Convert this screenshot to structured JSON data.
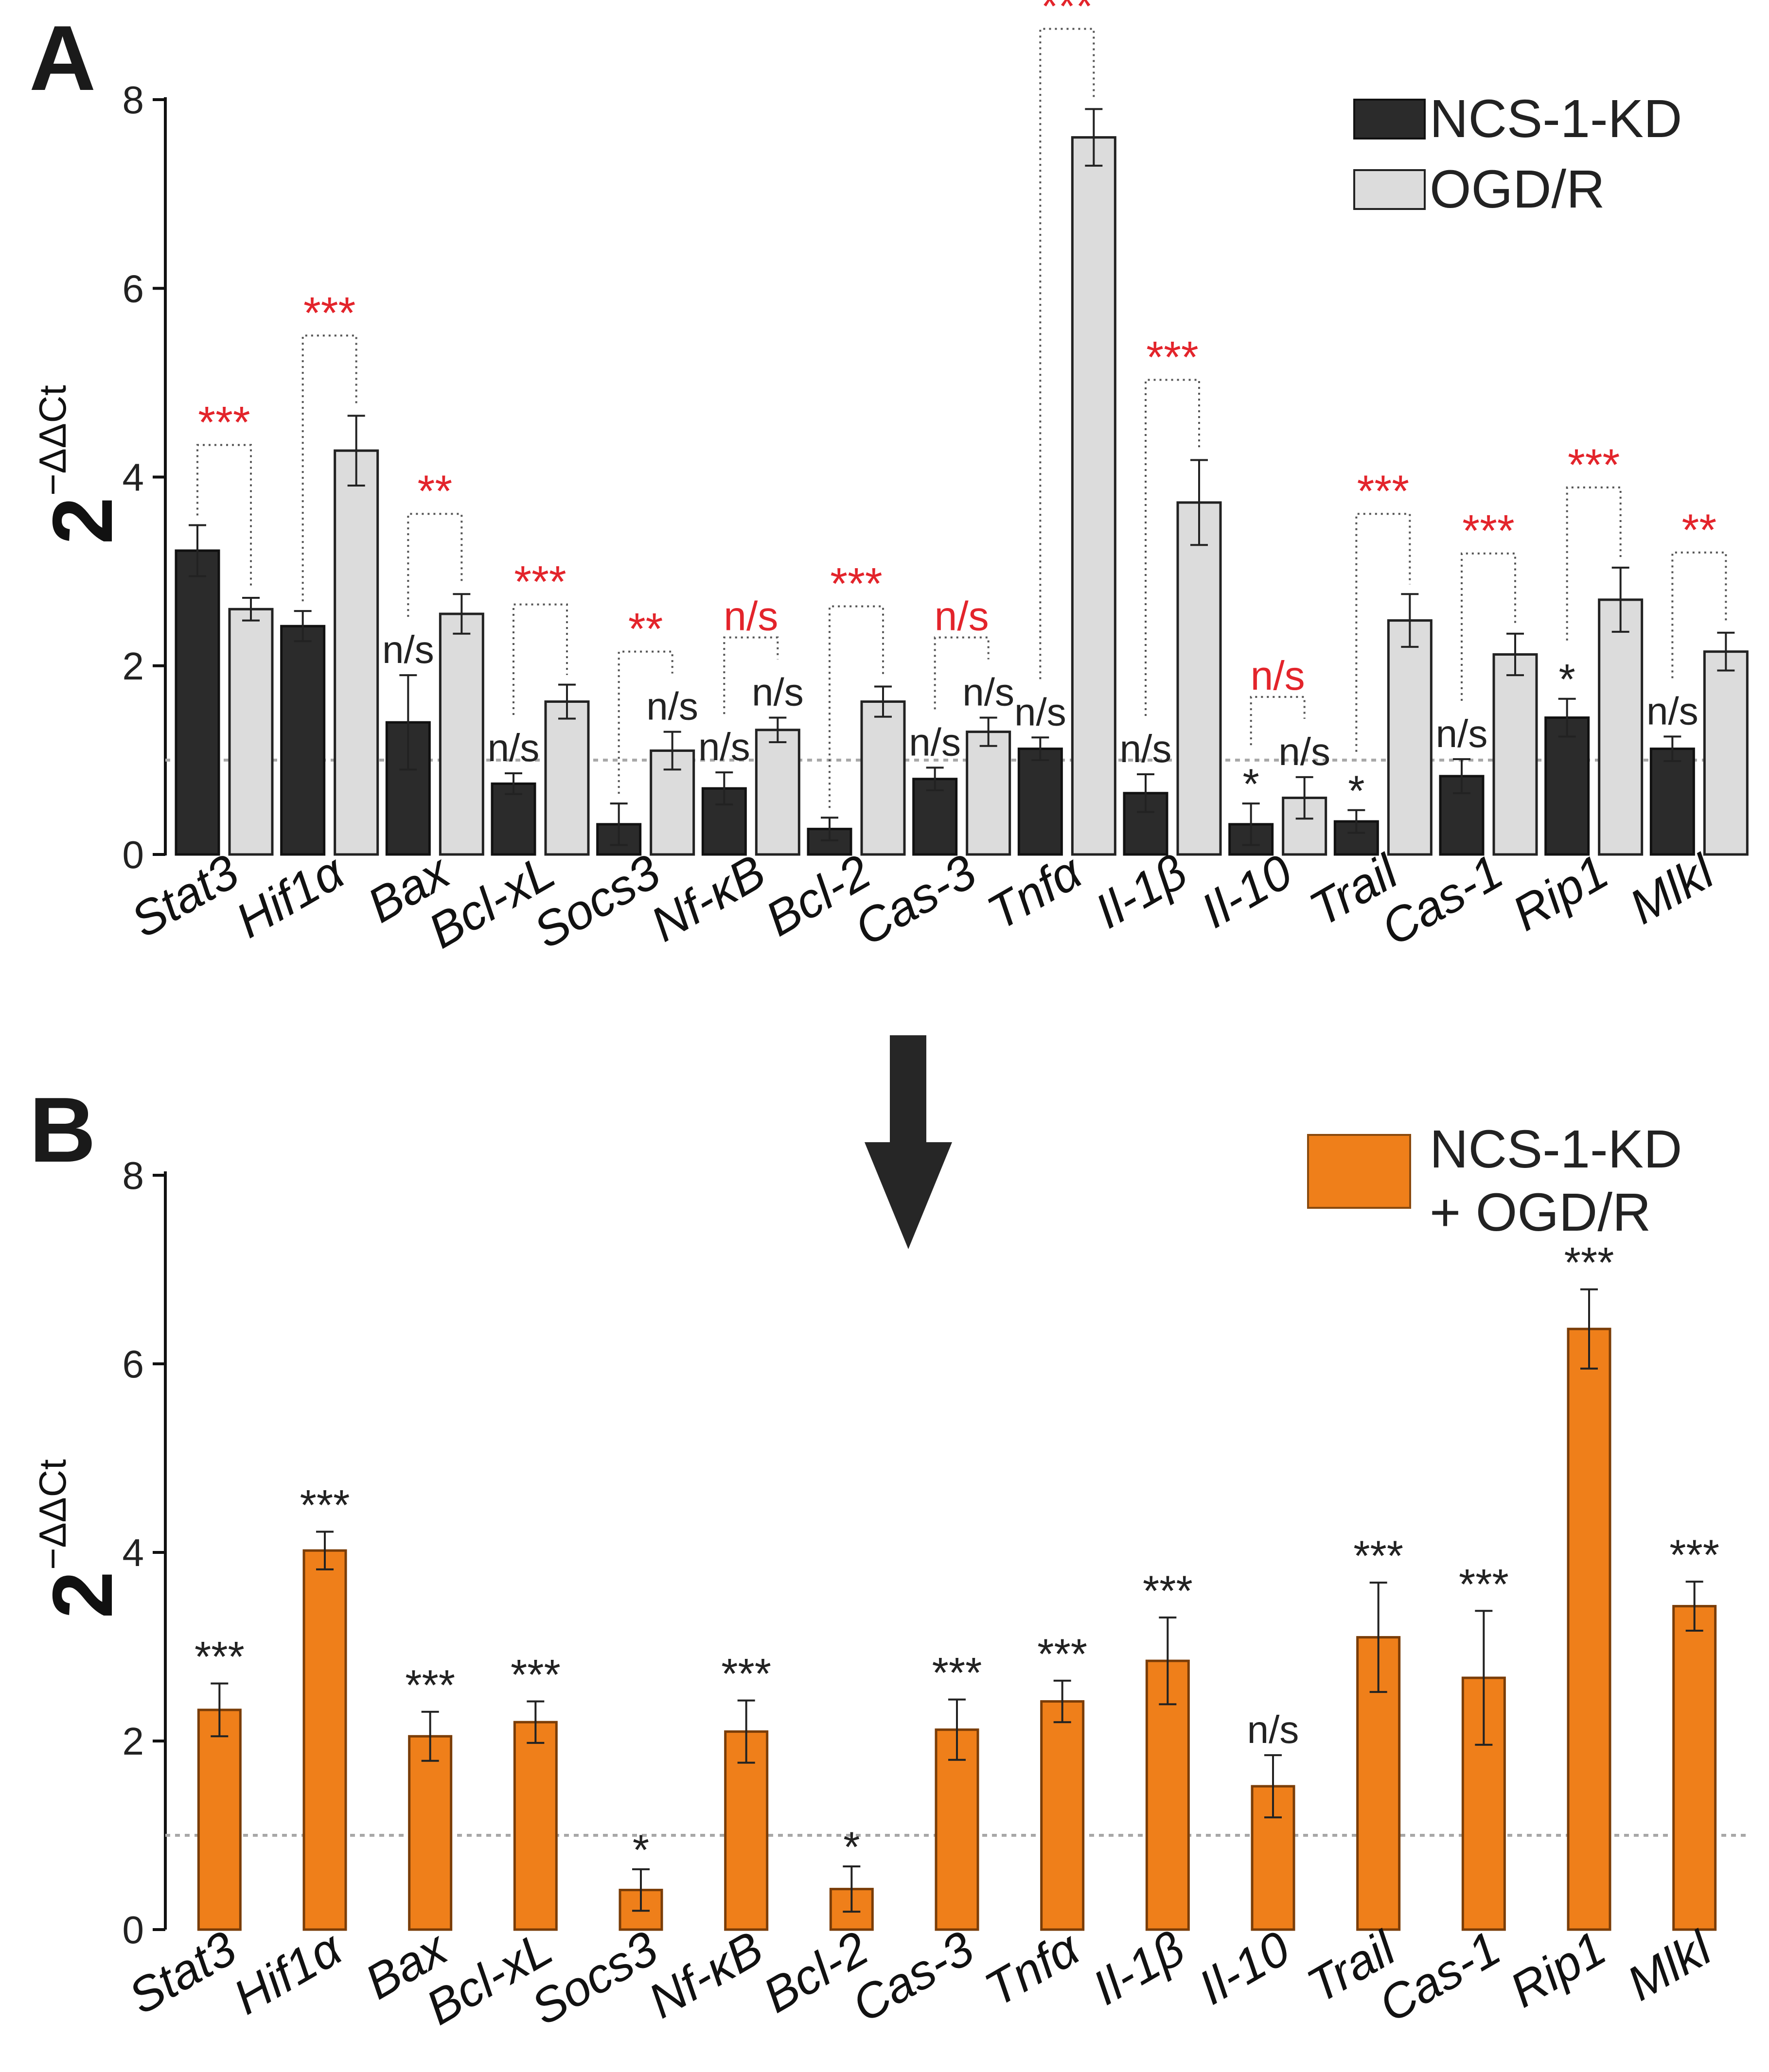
{
  "colors": {
    "kd": "#2b2b2b",
    "ogd": "#dcdcdc",
    "combo": "#ef7f1a",
    "sig_red": "#e3242b",
    "sig_black": "#222222",
    "baseline": "#a8a8a8"
  },
  "arrow": {
    "icon": "down-arrow-icon"
  },
  "chart_data": [
    {
      "panel": "A",
      "type": "bar",
      "ylabel_base": "2",
      "ylabel_exp": "−ΔΔCt",
      "ylim": [
        0,
        8
      ],
      "yticks": [
        0,
        2,
        4,
        6,
        8
      ],
      "yticklabels": [
        "0",
        "2",
        "4",
        "6",
        "8"
      ],
      "baseline": 1,
      "legend": [
        "NCS-1-KD",
        "OGD/R"
      ],
      "legend_position": "top-right",
      "categories": [
        "Stat3",
        "Hif1α",
        "Bax",
        "Bcl-xL",
        "Socs3",
        "Nf-κB",
        "Bcl-2",
        "Cas-3",
        "Tnfα",
        "Il-1β",
        "Il-10",
        "Trail",
        "Cas-1",
        "Rip1",
        "Mlkl"
      ],
      "series": [
        {
          "name": "NCS-1-KD",
          "values": [
            3.22,
            2.42,
            1.4,
            0.75,
            0.32,
            0.7,
            0.27,
            0.8,
            1.12,
            0.65,
            0.32,
            0.35,
            0.83,
            1.45,
            1.12
          ],
          "errors": [
            0.27,
            0.16,
            0.5,
            0.11,
            0.22,
            0.17,
            0.12,
            0.12,
            0.12,
            0.2,
            0.22,
            0.12,
            0.18,
            0.2,
            0.13
          ],
          "sig": [
            "",
            "",
            "n/s",
            "n/s",
            "",
            "n/s",
            "",
            "n/s",
            "n/s",
            "n/s",
            "*",
            "*",
            "n/s",
            "*",
            "n/s"
          ]
        },
        {
          "name": "OGD/R",
          "values": [
            2.6,
            4.28,
            2.55,
            1.62,
            1.1,
            1.32,
            1.62,
            1.3,
            7.6,
            3.73,
            0.6,
            2.48,
            2.12,
            2.7,
            2.15
          ],
          "errors": [
            0.12,
            0.37,
            0.21,
            0.18,
            0.2,
            0.13,
            0.16,
            0.15,
            0.3,
            0.45,
            0.22,
            0.28,
            0.22,
            0.34,
            0.2
          ],
          "sig": [
            "",
            "",
            "",
            "",
            "n/s",
            "n/s",
            "",
            "n/s",
            "",
            "",
            "n/s",
            "",
            "",
            "",
            ""
          ]
        }
      ],
      "comparison_sig": [
        "***",
        "***",
        "**",
        "***",
        "**",
        "n/s",
        "***",
        "n/s",
        "***",
        "***",
        "n/s",
        "***",
        "***",
        "***",
        "**"
      ]
    },
    {
      "panel": "B",
      "type": "bar",
      "ylabel_base": "2",
      "ylabel_exp": "−ΔΔCt",
      "ylim": [
        0,
        8
      ],
      "yticks": [
        0,
        2,
        4,
        6,
        8
      ],
      "yticklabels": [
        "0",
        "2",
        "4",
        "6",
        "8"
      ],
      "baseline": 1,
      "legend": [
        "NCS-1-KD",
        "+ OGD/R"
      ],
      "legend_position": "top-right",
      "categories": [
        "Stat3",
        "Hif1α",
        "Bax",
        "Bcl-xL",
        "Socs3",
        "Nf-κB",
        "Bcl-2",
        "Cas-3",
        "Tnfα",
        "Il-1β",
        "Il-10",
        "Trail",
        "Cas-1",
        "Rip1",
        "Mlkl"
      ],
      "series": [
        {
          "name": "NCS-1-KD + OGD/R",
          "values": [
            2.33,
            4.02,
            2.05,
            2.2,
            0.42,
            2.1,
            0.43,
            2.12,
            2.42,
            2.85,
            1.52,
            3.1,
            2.67,
            6.37,
            3.43
          ],
          "errors": [
            0.28,
            0.2,
            0.26,
            0.22,
            0.22,
            0.33,
            0.24,
            0.32,
            0.22,
            0.46,
            0.33,
            0.58,
            0.71,
            0.42,
            0.26
          ],
          "sig": [
            "***",
            "***",
            "***",
            "***",
            "*",
            "***",
            "*",
            "***",
            "***",
            "***",
            "n/s",
            "***",
            "***",
            "***",
            "***"
          ]
        }
      ]
    }
  ]
}
